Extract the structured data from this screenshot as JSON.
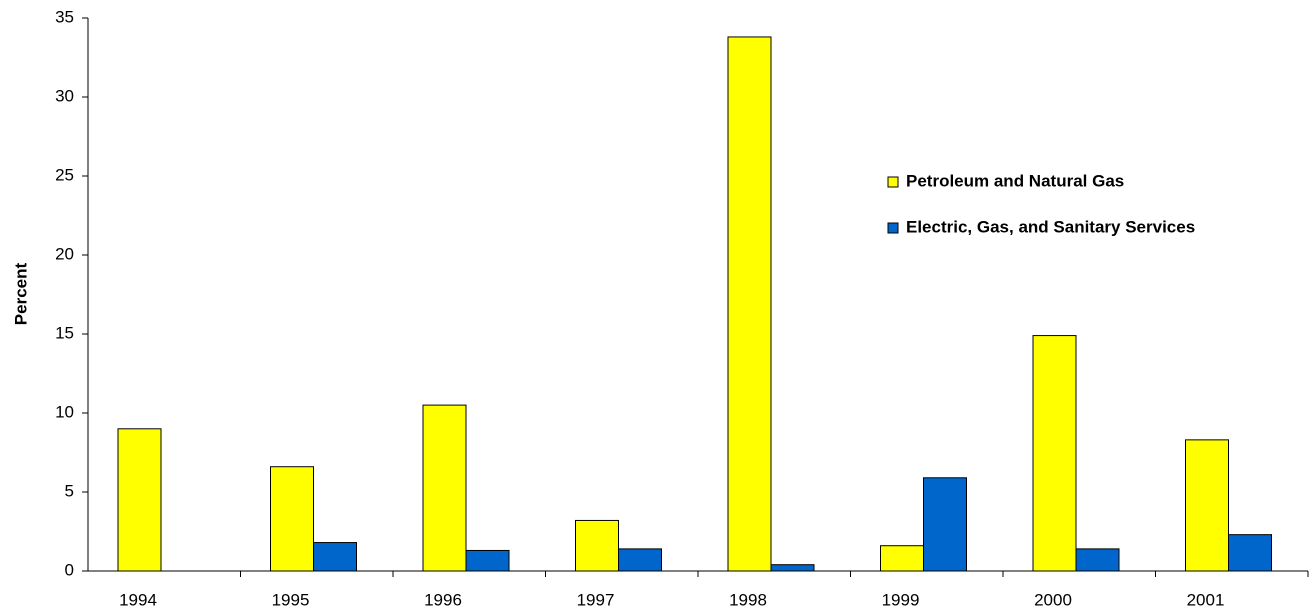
{
  "chart_data": {
    "type": "bar",
    "y_label": "Percent",
    "categories": [
      "1994",
      "1995",
      "1996",
      "1997",
      "1998",
      "1999",
      "2000",
      "2001"
    ],
    "series": [
      {
        "name": "Petroleum and Natural Gas",
        "color": "#ffff00",
        "values": [
          9.0,
          6.6,
          10.5,
          3.2,
          33.8,
          1.6,
          14.9,
          8.3
        ]
      },
      {
        "name": "Electric, Gas, and Sanitary Services",
        "color": "#0066cc",
        "values": [
          0,
          1.8,
          1.3,
          1.4,
          0.4,
          5.9,
          1.4,
          2.3
        ]
      }
    ],
    "ylim": [
      0,
      35
    ],
    "yticks": [
      0,
      5,
      10,
      15,
      20,
      25,
      30,
      35
    ],
    "grid": false,
    "legend": "right"
  }
}
